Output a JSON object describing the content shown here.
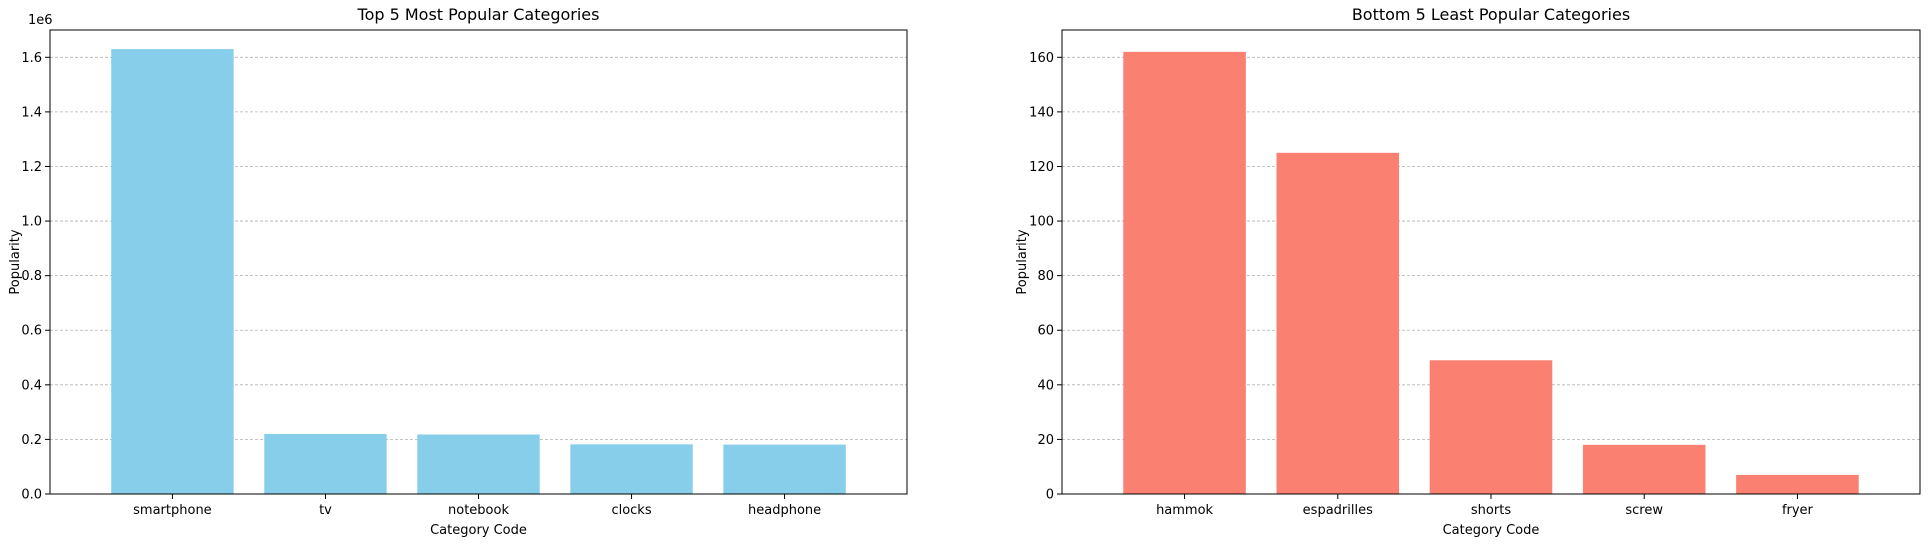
{
  "chart_data": [
    {
      "type": "bar",
      "title": "Top 5 Most Popular Categories",
      "xlabel": "Category Code",
      "ylabel": "Popularity",
      "categories": [
        "smartphone",
        "tv",
        "notebook",
        "clocks",
        "headphone"
      ],
      "values": [
        1630000,
        220000,
        218000,
        182000,
        181000
      ],
      "ylim": [
        0,
        1700000
      ],
      "yticks": [
        0,
        200000,
        400000,
        600000,
        800000,
        1000000,
        1200000,
        1400000,
        1600000
      ],
      "ytick_labels": [
        "0.0",
        "0.2",
        "0.4",
        "0.6",
        "0.8",
        "1.0",
        "1.2",
        "1.4",
        "1.6"
      ],
      "offset_text": "1e6",
      "color": "#87CEEB",
      "grid": "y"
    },
    {
      "type": "bar",
      "title": "Bottom 5 Least Popular Categories",
      "xlabel": "Category Code",
      "ylabel": "Popularity",
      "categories": [
        "hammok",
        "espadrilles",
        "shorts",
        "screw",
        "fryer"
      ],
      "values": [
        162,
        125,
        49,
        18,
        7
      ],
      "ylim": [
        0,
        170
      ],
      "yticks": [
        0,
        20,
        40,
        60,
        80,
        100,
        120,
        140,
        160
      ],
      "ytick_labels": [
        "0",
        "20",
        "40",
        "60",
        "80",
        "100",
        "120",
        "140",
        "160"
      ],
      "color": "#FA8072",
      "grid": "y"
    }
  ]
}
